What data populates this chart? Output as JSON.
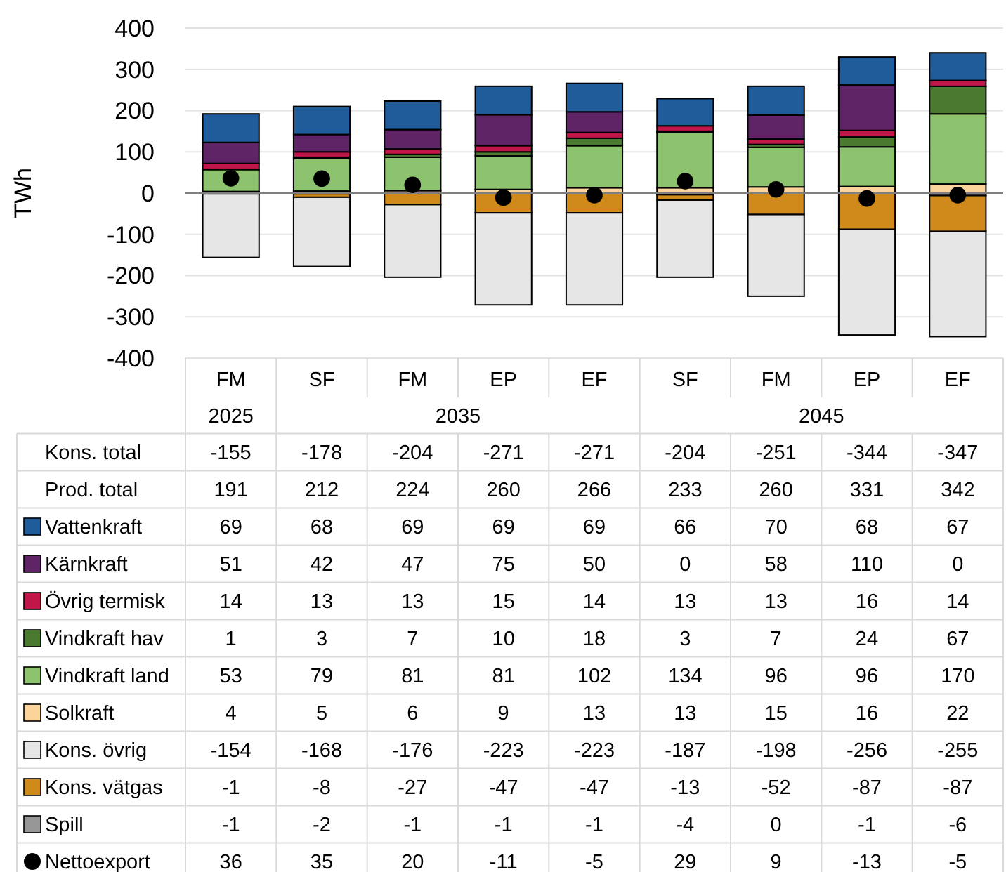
{
  "chart_data": {
    "type": "bar",
    "stacked": true,
    "ylabel": "TWh",
    "categories": [
      "FM",
      "SF",
      "FM",
      "EP",
      "EF",
      "SF",
      "FM",
      "EP",
      "EF"
    ],
    "annotations": [
      "2025",
      "2035",
      "2045"
    ],
    "totals": [
      {
        "name": "Kons. total",
        "values": [
          "-155",
          "-178",
          "-204",
          "-271",
          "-271",
          "-204",
          "-251",
          "-344",
          "-347"
        ]
      },
      {
        "name": "Prod. total",
        "values": [
          "191",
          "212",
          "224",
          "260",
          "266",
          "233",
          "260",
          "331",
          "342"
        ]
      }
    ],
    "ylim": [
      -400,
      400
    ],
    "yticks": [
      -400,
      -300,
      -200,
      -100,
      0,
      100,
      200,
      300,
      400
    ],
    "grid": "y",
    "legend": "bottom",
    "data_labels": true,
    "marker": "circle",
    "series": [
      {
        "name": "Spill",
        "color": "#969696",
        "values": [
          -1,
          -2,
          -1,
          -1,
          -1,
          -4,
          0,
          -1,
          -6
        ]
      },
      {
        "name": "Kons. vätgas",
        "color": "#d08a1c",
        "values": [
          -1,
          -8,
          -27,
          -47,
          -47,
          -13,
          -52,
          -87,
          -87
        ]
      },
      {
        "name": "Kons. övrig",
        "color": "#e6e6e6",
        "values": [
          -154,
          -168,
          -176,
          -223,
          -223,
          -187,
          -198,
          -256,
          -255
        ]
      },
      {
        "name": "Solkraft",
        "color": "#fbd49b",
        "values": [
          4,
          5,
          6,
          9,
          13,
          13,
          15,
          16,
          22
        ]
      },
      {
        "name": "Vindkraft land",
        "color": "#8dc26f",
        "values": [
          53,
          79,
          81,
          81,
          102,
          134,
          96,
          96,
          170
        ]
      },
      {
        "name": "Vindkraft hav",
        "color": "#4a7a30",
        "values": [
          1,
          3,
          7,
          10,
          18,
          3,
          7,
          24,
          67
        ]
      },
      {
        "name": "Övrig termisk",
        "color": "#c0164a",
        "values": [
          14,
          13,
          13,
          15,
          14,
          13,
          13,
          16,
          14
        ]
      },
      {
        "name": "Kärnkraft",
        "color": "#5e2466",
        "values": [
          51,
          42,
          47,
          75,
          50,
          0,
          58,
          110,
          0
        ]
      },
      {
        "name": "Vattenkraft",
        "color": "#1f5c99",
        "values": [
          69,
          68,
          69,
          69,
          69,
          66,
          70,
          68,
          67
        ]
      },
      {
        "name": "Nettoexport",
        "type": "scatter",
        "color": "#000000",
        "values": [
          36,
          35,
          20,
          -11,
          -5,
          29,
          9,
          -13,
          -5
        ]
      }
    ]
  }
}
